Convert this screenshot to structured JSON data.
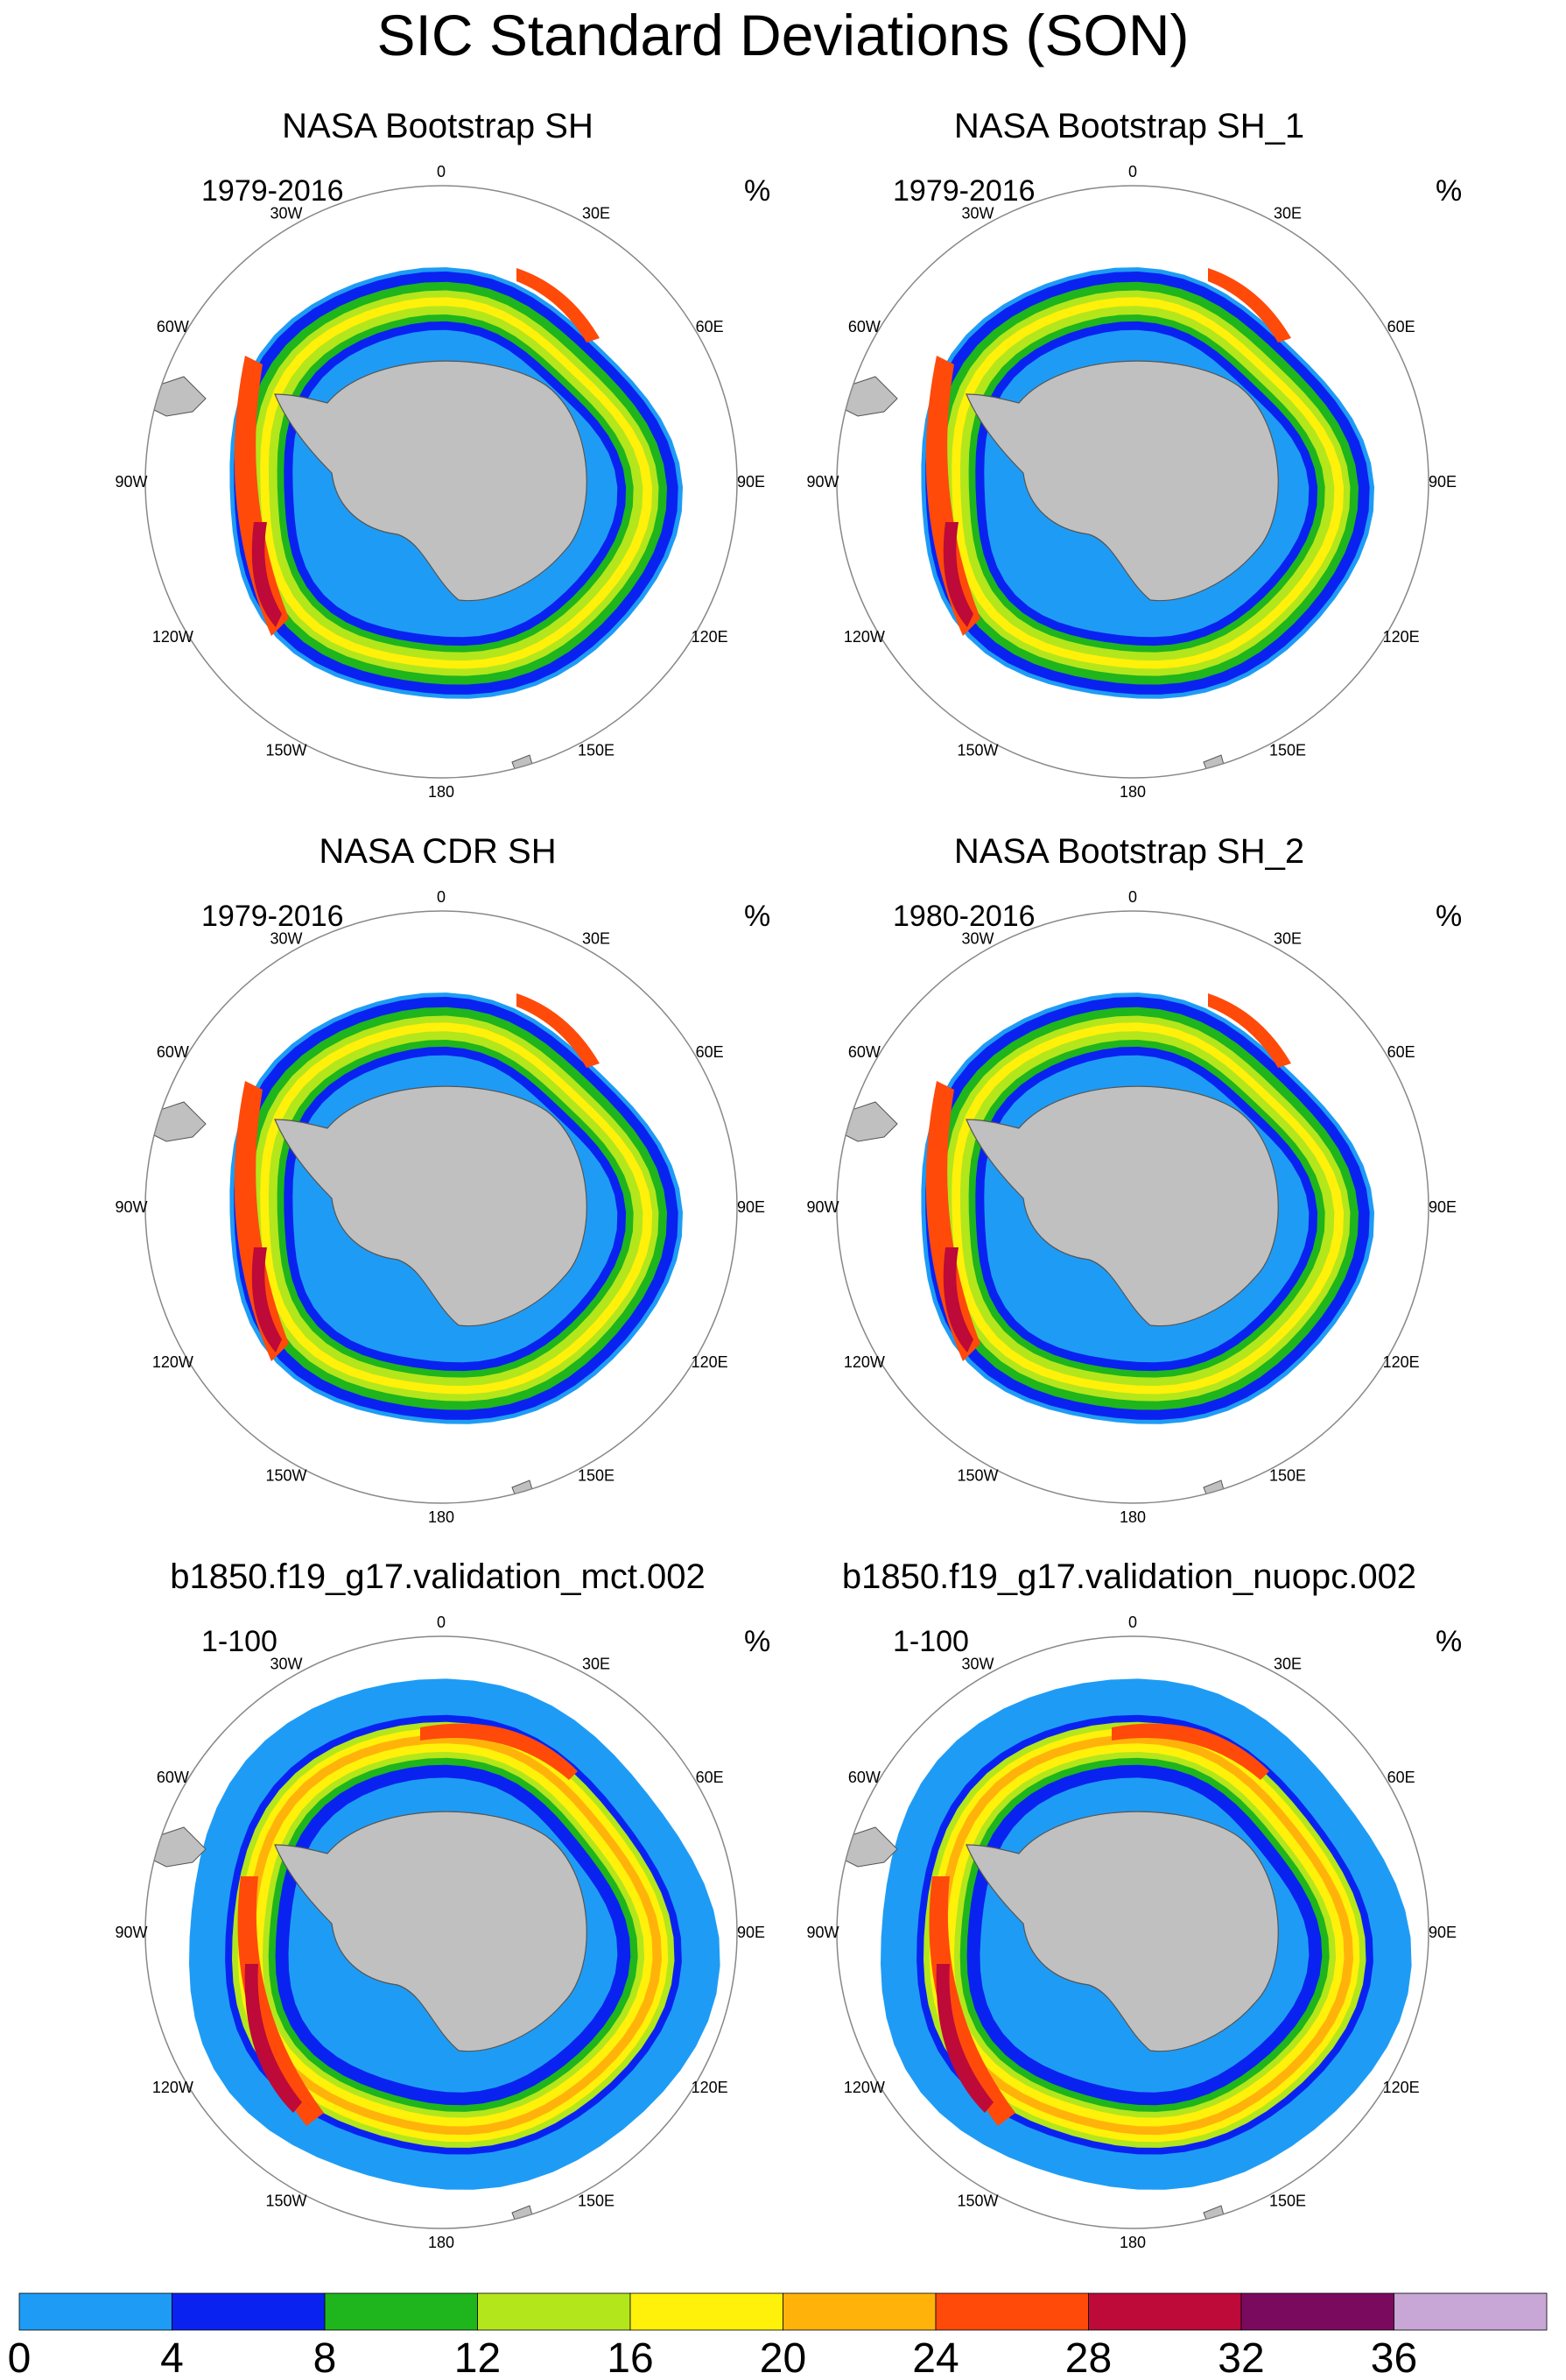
{
  "main_title": "SIC Standard Deviations (SON)",
  "colorbar": {
    "colors": [
      "#1e9cf5",
      "#0a22f0",
      "#1fb51c",
      "#b4e61c",
      "#fff10a",
      "#ffb30a",
      "#ff4a0a",
      "#bd0a38",
      "#7a0a5e",
      "#c8a6d6"
    ],
    "ticks": [
      "0",
      "4",
      "8",
      "12",
      "16",
      "20",
      "24",
      "28",
      "32",
      "36"
    ]
  },
  "longitude_labels": [
    "0",
    "30E",
    "60E",
    "90E",
    "120E",
    "150E",
    "180",
    "150W",
    "120W",
    "90W",
    "60W",
    "30W"
  ],
  "panels": [
    {
      "title": "NASA Bootstrap SH",
      "years": "1979-2016",
      "unit": "%",
      "style": "obs"
    },
    {
      "title": "NASA Bootstrap SH_1",
      "years": "1979-2016",
      "unit": "%",
      "style": "obs"
    },
    {
      "title": "NASA CDR SH",
      "years": "1979-2016",
      "unit": "%",
      "style": "obs"
    },
    {
      "title": "NASA Bootstrap SH_2",
      "years": "1980-2016",
      "unit": "%",
      "style": "obs"
    },
    {
      "title": "b1850.f19_g17.validation_mct.002",
      "years": "1-100",
      "unit": "%",
      "style": "model"
    },
    {
      "title": "b1850.f19_g17.validation_nuopc.002",
      "years": "1-100",
      "unit": "%",
      "style": "model"
    }
  ]
}
